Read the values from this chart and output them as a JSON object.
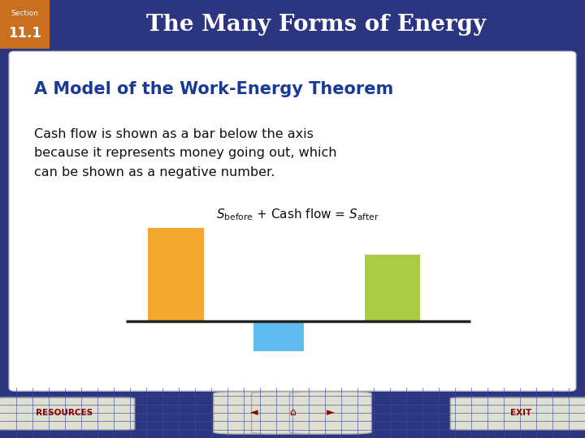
{
  "title_section": "Section",
  "title_number": "11.1",
  "title_main": "The Many Forms of Energy",
  "subtitle": "A Model of the Work-Energy Theorem",
  "body_text": "Cash flow is shown as a bar below the axis\nbecause it represents money going out, which\ncan be shown as a negative number.",
  "header_bg_color": "#A01010",
  "header_section_bg": "#C87020",
  "slide_bg_color": "#2B3580",
  "content_bg_color": "#FFFFFF",
  "subtitle_color": "#1A3A9A",
  "body_text_color": "#111111",
  "title_text_color": "#FFFFFF",
  "bar_before_color": "#F5A830",
  "bar_cashflow_color": "#60BBEE",
  "bar_after_color": "#AACC44",
  "axis_line_color": "#222222",
  "footer_bg_color": "#2B3580",
  "footer_grid_color": "#3A4AA0",
  "resources_text": "RESOURCES",
  "exit_text": "EXIT",
  "footer_btn_color": "#E0E0D0",
  "footer_btn_edge": "#AAAAAA",
  "nav_btn_color": "#E0E0D0",
  "red_sep_color": "#CC1111"
}
